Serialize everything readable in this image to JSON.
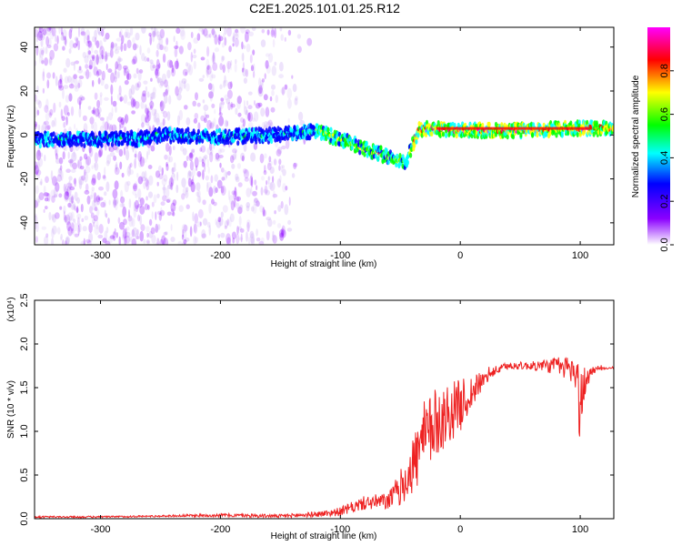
{
  "figure_title": "C2E1.2025.101.01.25.R12",
  "chart_data": [
    {
      "type": "heatmap",
      "title": "C2E1.2025.101.01.25.R12",
      "xlabel": "Height of straight line (km)",
      "ylabel": "Frequency (Hz)",
      "xlim": [
        -355,
        128
      ],
      "ylim": [
        -50,
        49
      ],
      "xticks": [
        -300,
        -200,
        -100,
        0,
        100
      ],
      "xtick_labels": [
        "-300",
        "-200",
        "-100",
        "0",
        "100"
      ],
      "yticks": [
        -40,
        -20,
        0,
        20,
        40
      ],
      "ytick_labels": [
        "-40",
        "-20",
        "0",
        "20",
        "40"
      ],
      "colorbar": {
        "label": "Normalized spectral amplitude",
        "range": [
          0,
          1
        ],
        "ticks": [
          0,
          0.2,
          0.4,
          0.6,
          0.8
        ],
        "tick_labels": [
          "0.0",
          "0.2",
          "0.4",
          "0.6",
          "0.8"
        ],
        "colors": [
          "#ffffff",
          "#8b00ff",
          "#0000ff",
          "#00ffff",
          "#00ff00",
          "#ffff00",
          "#ff0000",
          "#ff00ff"
        ]
      },
      "ridge": {
        "x": [
          -355,
          -300,
          -280,
          -270,
          -250,
          -200,
          -150,
          -120,
          -100,
          -80,
          -60,
          -45,
          -40,
          -35,
          -30,
          0,
          50,
          100,
          128
        ],
        "freq": [
          -2,
          -2,
          -1,
          -2,
          0,
          -1,
          0,
          2,
          -2,
          -6,
          -10,
          -12,
          -5,
          2,
          3,
          2,
          2,
          3,
          3
        ]
      }
    },
    {
      "type": "line",
      "xlabel": "Height of straight line (km)",
      "ylabel": "SNR (10 * v/v)",
      "y_multiplier_label": "(x10⁴)",
      "xlim": [
        -355,
        128
      ],
      "ylim": [
        0,
        2.5
      ],
      "xticks": [
        -300,
        -200,
        -100,
        0,
        100
      ],
      "xtick_labels": [
        "-300",
        "-200",
        "-100",
        "0",
        "100"
      ],
      "yticks": [
        0,
        0.5,
        1,
        1.5,
        2,
        2.5
      ],
      "ytick_labels": [
        "0.0",
        "0.5",
        "1.0",
        "1.5",
        "2.0",
        "2.5"
      ],
      "series": [
        {
          "name": "SNR",
          "color": "#ee2222",
          "x": [
            -355,
            -300,
            -250,
            -200,
            -150,
            -120,
            -100,
            -80,
            -60,
            -50,
            -40,
            -30,
            -20,
            -10,
            0,
            10,
            20,
            30,
            40,
            60,
            80,
            90,
            95,
            100,
            105,
            110,
            120,
            128
          ],
          "y": [
            0.02,
            0.02,
            0.03,
            0.04,
            0.03,
            0.05,
            0.08,
            0.18,
            0.2,
            0.35,
            0.6,
            0.9,
            1.1,
            1.2,
            1.3,
            1.45,
            1.6,
            1.7,
            1.75,
            1.75,
            1.75,
            1.72,
            1.7,
            1.3,
            1.6,
            1.7,
            1.72,
            1.72
          ],
          "noise": [
            0.01,
            0.01,
            0.01,
            0.02,
            0.02,
            0.03,
            0.05,
            0.08,
            0.1,
            0.2,
            0.35,
            0.45,
            0.4,
            0.35,
            0.3,
            0.2,
            0.08,
            0.05,
            0.04,
            0.05,
            0.1,
            0.15,
            0.15,
            0.5,
            0.15,
            0.05,
            0.01,
            0.01
          ]
        }
      ]
    }
  ]
}
